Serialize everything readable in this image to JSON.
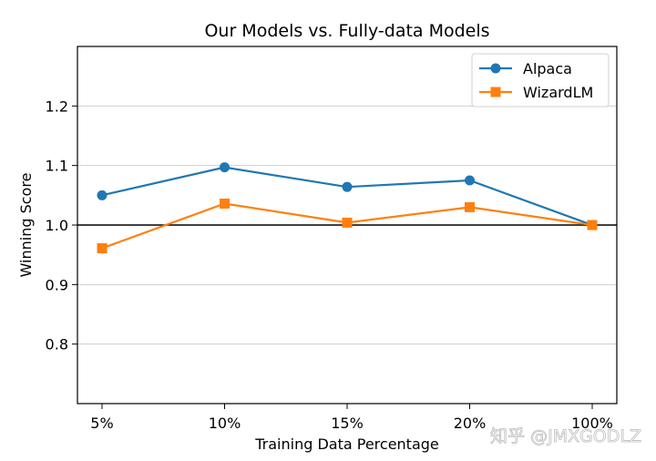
{
  "chart_data": {
    "type": "line",
    "title": "Our Models vs. Fully-data Models",
    "xlabel": "Training Data Percentage",
    "ylabel": "Winning Score",
    "categories": [
      "5%",
      "10%",
      "15%",
      "20%",
      "100%"
    ],
    "ylim": [
      0.7,
      1.3
    ],
    "yticks": [
      0.8,
      0.9,
      1.0,
      1.1,
      1.2
    ],
    "ytick_labels": [
      "0.8",
      "0.9",
      "1.0",
      "1.1",
      "1.2"
    ],
    "reference_line": 1.0,
    "grid": "horizontal",
    "legend_position": "top-right",
    "series": [
      {
        "name": "Alpaca",
        "marker": "circle",
        "color": "#1f77b4",
        "values": [
          1.05,
          1.097,
          1.064,
          1.075,
          1.0
        ]
      },
      {
        "name": "WizardLM",
        "marker": "square",
        "color": "#ff7f0e",
        "values": [
          0.961,
          1.036,
          1.004,
          1.03,
          1.0
        ]
      }
    ]
  },
  "watermark": "知乎 @JMXGODLZ"
}
